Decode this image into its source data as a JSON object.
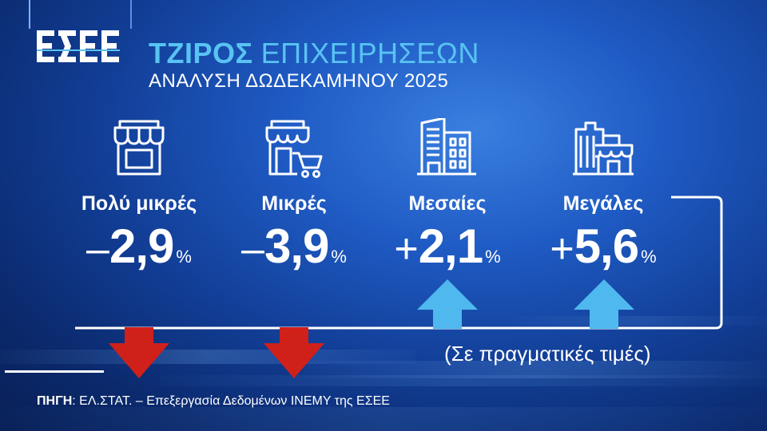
{
  "brand": {
    "logo_text": "ΕΣΕΕ"
  },
  "header": {
    "title_strong": "ΤΖΙΡΟΣ",
    "title_light": "ΕΠΙΧΕΙΡΗΣΕΩΝ",
    "subtitle": "ΑΝΑΛΥΣΗ ΔΩΔΕΚΑΜΗΝΟΥ 2025"
  },
  "categories": [
    {
      "label": "Πολύ μικρές",
      "sign": "–",
      "value": "2,9",
      "unit": "%",
      "icon": "small-shop-icon",
      "trend": "down"
    },
    {
      "label": "Μικρές",
      "sign": "–",
      "value": "3,9",
      "unit": "%",
      "icon": "shop-with-cart-icon",
      "trend": "down"
    },
    {
      "label": "Μεσαίες",
      "sign": "+",
      "value": "2,1",
      "unit": "%",
      "icon": "building-icon",
      "trend": "up"
    },
    {
      "label": "Μεγάλες",
      "sign": "+",
      "value": "5,6",
      "unit": "%",
      "icon": "city-buildings-icon",
      "trend": "up"
    }
  ],
  "note": "(Σε πραγματικές τιμές)",
  "source": {
    "label": "ΠΗΓΗ",
    "text": ": ΕΛ.ΣΤΑΤ. – Επεξεργασία Δεδομένων ΙΝΕΜΥ της ΕΣΕΕ"
  },
  "colors": {
    "accent": "#58c3f2",
    "down": "#d0201a",
    "up": "#4fb8ee",
    "background": "#1f5bc4"
  }
}
